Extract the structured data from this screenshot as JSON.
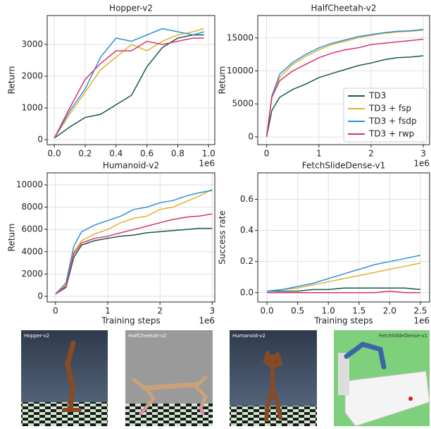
{
  "chart_data": [
    {
      "type": "line",
      "title": "Hopper-v2",
      "y_label": "Return",
      "x_offset_label": "1e6",
      "grid": true,
      "x": [
        0,
        0.1,
        0.2,
        0.3,
        0.4,
        0.5,
        0.6,
        0.7,
        0.8,
        0.9,
        0.97
      ],
      "xlim": [
        -0.046,
        1.04
      ],
      "xticks": [
        {
          "value": 0,
          "label": "0.0"
        },
        0.2,
        0.4,
        0.6,
        0.8,
        {
          "value": 1,
          "label": "1.0"
        }
      ],
      "ylim": [
        -155,
        3910
      ],
      "yticks": [
        0,
        1000,
        2000,
        3000
      ],
      "series": [
        {
          "name": "TD3",
          "color": "#17594a",
          "values": [
            50,
            400,
            700,
            800,
            1100,
            1400,
            2300,
            2900,
            3200,
            3300,
            3300
          ]
        },
        {
          "name": "TD3 + fsp",
          "color": "#e0b030",
          "values": [
            50,
            800,
            1500,
            2200,
            2600,
            3000,
            2800,
            3100,
            3300,
            3400,
            3500
          ]
        },
        {
          "name": "TD3 + fsdp",
          "color": "#2e90d8",
          "values": [
            50,
            900,
            1600,
            2600,
            3200,
            3100,
            3300,
            3500,
            3400,
            3300,
            3400
          ]
        },
        {
          "name": "TD3 + rwp",
          "color": "#d9336b",
          "values": [
            50,
            1000,
            1900,
            2400,
            2800,
            2800,
            3100,
            3000,
            3100,
            3200,
            3200
          ]
        }
      ]
    },
    {
      "type": "line",
      "title": "HalfCheetah-v2",
      "y_label": "Return",
      "x_offset_label": "1e6",
      "grid": true,
      "legend": "lower right",
      "x": [
        0,
        0.1,
        0.25,
        0.5,
        0.75,
        1,
        1.25,
        1.5,
        1.75,
        2,
        2.25,
        2.5,
        2.75,
        3
      ],
      "xlim": [
        -0.17,
        3.12
      ],
      "xticks": [
        0,
        1,
        2,
        3
      ],
      "ylim": [
        -1180,
        18400
      ],
      "yticks": [
        0,
        5000,
        10000,
        15000
      ],
      "series": [
        {
          "name": "TD3",
          "color": "#17594a",
          "values": [
            0,
            4000,
            6000,
            7200,
            8000,
            9000,
            9600,
            10200,
            10800,
            11200,
            11700,
            12000,
            12100,
            12300
          ]
        },
        {
          "name": "TD3 + fsp",
          "color": "#e0b030",
          "values": [
            0,
            6000,
            9000,
            11000,
            12200,
            13200,
            14000,
            14500,
            15000,
            15400,
            15700,
            15900,
            16000,
            16200
          ]
        },
        {
          "name": "TD3 + fsdp",
          "color": "#2e90d8",
          "values": [
            0,
            6200,
            9500,
            11300,
            12500,
            13500,
            14200,
            14700,
            15200,
            15500,
            15800,
            16000,
            16100,
            16300
          ]
        },
        {
          "name": "TD3 + rwp",
          "color": "#d9336b",
          "values": [
            0,
            6000,
            8500,
            10000,
            11000,
            12000,
            12700,
            13200,
            13500,
            14000,
            14200,
            14400,
            14600,
            14800
          ]
        }
      ]
    },
    {
      "type": "line",
      "title": "Humanoid-v2",
      "y_label": "Return",
      "x_label": "Training steps",
      "x_offset_label": "1e6",
      "grid": true,
      "x": [
        0,
        0.2,
        0.35,
        0.5,
        0.75,
        1,
        1.25,
        1.5,
        1.75,
        2,
        2.25,
        2.5,
        2.75,
        3
      ],
      "xlim": [
        -0.16,
        3.05
      ],
      "xticks": [
        0,
        1,
        2,
        3
      ],
      "ylim": [
        -510,
        11080
      ],
      "yticks": [
        0,
        2000,
        4000,
        6000,
        8000,
        10000
      ],
      "series": [
        {
          "name": "TD3",
          "color": "#17594a",
          "values": [
            200,
            800,
            3500,
            4600,
            5000,
            5200,
            5400,
            5500,
            5700,
            5800,
            5900,
            6000,
            6100,
            6100
          ]
        },
        {
          "name": "TD3 + fsp",
          "color": "#e0b030",
          "values": [
            200,
            1000,
            4000,
            5000,
            5600,
            6000,
            6600,
            7000,
            7200,
            7800,
            8000,
            8500,
            9000,
            9600
          ]
        },
        {
          "name": "TD3 + fsdp",
          "color": "#2e90d8",
          "values": [
            200,
            1200,
            4500,
            5800,
            6400,
            6800,
            7200,
            7800,
            8000,
            8400,
            8600,
            9000,
            9300,
            9500
          ]
        },
        {
          "name": "TD3 + rwp",
          "color": "#d9336b",
          "values": [
            200,
            900,
            3800,
            4800,
            5200,
            5400,
            5700,
            6000,
            6300,
            6600,
            6900,
            7100,
            7200,
            7400
          ]
        }
      ]
    },
    {
      "type": "line",
      "title": "FetchSlideDense-v1",
      "y_label": "Success rate",
      "x_label": "Training steps",
      "x_offset_label": "1e6",
      "grid": true,
      "x": [
        0,
        0.25,
        0.5,
        0.75,
        1,
        1.25,
        1.5,
        1.75,
        2,
        2.25,
        2.5
      ],
      "xlim": [
        -0.15,
        2.65
      ],
      "xticks": [
        {
          "value": 0,
          "label": "0.0"
        },
        0.5,
        {
          "value": 1,
          "label": "1.0"
        },
        1.5,
        {
          "value": 2,
          "label": "2.0"
        },
        2.5
      ],
      "ylim": [
        -0.06,
        0.77
      ],
      "yticks": [
        {
          "value": 0,
          "label": "0.0"
        },
        0.2,
        0.4,
        0.6
      ],
      "series": [
        {
          "name": "TD3",
          "color": "#17594a",
          "values": [
            0.01,
            0.01,
            0.01,
            0.02,
            0.02,
            0.03,
            0.03,
            0.03,
            0.03,
            0.03,
            0.02
          ]
        },
        {
          "name": "TD3 + fsp",
          "color": "#e0b030",
          "values": [
            0.01,
            0.02,
            0.03,
            0.05,
            0.07,
            0.09,
            0.11,
            0.13,
            0.15,
            0.17,
            0.19
          ]
        },
        {
          "name": "TD3 + fsdp",
          "color": "#2e90d8",
          "values": [
            0.01,
            0.02,
            0.04,
            0.06,
            0.09,
            0.12,
            0.15,
            0.18,
            0.2,
            0.22,
            0.24
          ]
        },
        {
          "name": "TD3 + rwp",
          "color": "#d9336b",
          "values": [
            0,
            0,
            0,
            0,
            0,
            0,
            0,
            0,
            0.01,
            0,
            0
          ]
        }
      ]
    }
  ],
  "environments": [
    {
      "label": "Hopper-v2"
    },
    {
      "label": "HalfCheetah-v2"
    },
    {
      "label": "Humanoid-v2"
    },
    {
      "label": "FetchSlideDense-v1"
    }
  ]
}
